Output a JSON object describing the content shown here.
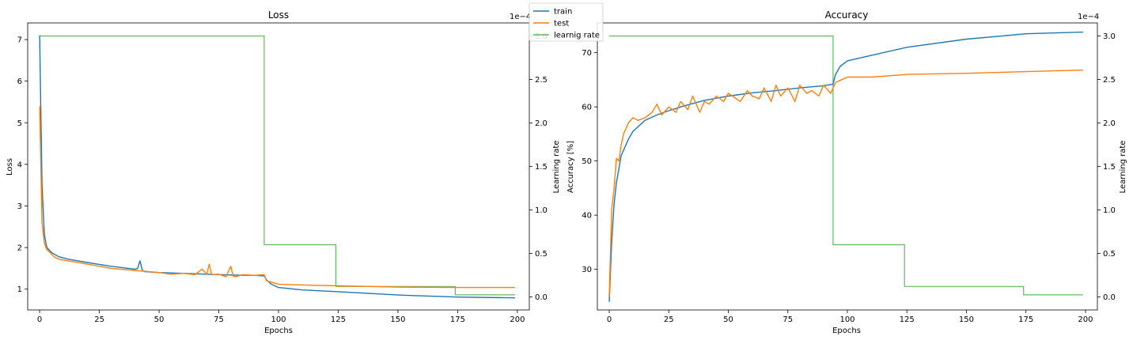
{
  "figure": {
    "legend": {
      "entries": [
        {
          "label": "train",
          "color": "#1f77b4"
        },
        {
          "label": "test",
          "color": "#ff7f0e"
        },
        {
          "label": "learnig rate",
          "color": "#2ca02c"
        }
      ]
    }
  },
  "chart_data": [
    {
      "type": "line",
      "title": "Loss",
      "xlabel": "Epochs",
      "ylabel": "Loss",
      "y2label": "Learning rate",
      "y2_offset_label": "1e−4",
      "xlim": [
        -5,
        205
      ],
      "ylim": [
        0.5,
        7.4
      ],
      "y2lim": [
        -0.15,
        3.15
      ],
      "xticks": [
        0,
        25,
        50,
        75,
        100,
        125,
        150,
        175,
        200
      ],
      "yticks": [
        1,
        2,
        3,
        4,
        5,
        6,
        7
      ],
      "y2ticks": [
        0.0,
        0.5,
        1.0,
        1.5,
        2.0,
        2.5,
        3.0
      ],
      "series": [
        {
          "name": "train",
          "color": "#1f77b4",
          "x": [
            0,
            1,
            2,
            3,
            5,
            8,
            12,
            20,
            30,
            40,
            41,
            42,
            43,
            44,
            50,
            60,
            70,
            80,
            90,
            94,
            95,
            97,
            100,
            110,
            125,
            150,
            175,
            199
          ],
          "y": [
            7.1,
            3.5,
            2.3,
            2.0,
            1.88,
            1.78,
            1.72,
            1.64,
            1.55,
            1.48,
            1.5,
            1.68,
            1.45,
            1.42,
            1.4,
            1.38,
            1.36,
            1.34,
            1.33,
            1.32,
            1.22,
            1.12,
            1.04,
            0.98,
            0.94,
            0.86,
            0.81,
            0.79
          ]
        },
        {
          "name": "test",
          "color": "#ff7f0e",
          "x": [
            0,
            1,
            2,
            3,
            4,
            6,
            8,
            12,
            20,
            30,
            40,
            50,
            55,
            60,
            65,
            68,
            70,
            71,
            72,
            75,
            78,
            80,
            81,
            82,
            85,
            90,
            94,
            95,
            100,
            110,
            125,
            150,
            175,
            199
          ],
          "y": [
            5.4,
            2.6,
            2.1,
            1.95,
            1.9,
            1.78,
            1.72,
            1.68,
            1.6,
            1.5,
            1.45,
            1.4,
            1.36,
            1.38,
            1.35,
            1.48,
            1.36,
            1.6,
            1.35,
            1.36,
            1.3,
            1.55,
            1.32,
            1.3,
            1.35,
            1.33,
            1.35,
            1.2,
            1.12,
            1.1,
            1.08,
            1.05,
            1.04,
            1.04
          ]
        },
        {
          "name": "learnig rate",
          "color": "#2ca02c",
          "x": [
            0,
            94,
            94,
            124,
            124,
            174,
            174,
            199
          ],
          "y": [
            3.0,
            3.0,
            0.6,
            0.6,
            0.12,
            0.12,
            0.024,
            0.024
          ]
        }
      ]
    },
    {
      "type": "line",
      "title": "Accuracy",
      "xlabel": "Epochs",
      "ylabel": "Accuracy [%]",
      "y2label": "Learning rate",
      "y2_offset_label": "1e−4",
      "xlim": [
        -5,
        205
      ],
      "ylim": [
        22.5,
        75.5
      ],
      "y2lim": [
        -0.15,
        3.15
      ],
      "xticks": [
        0,
        25,
        50,
        75,
        100,
        125,
        150,
        175,
        200
      ],
      "yticks": [
        30,
        40,
        50,
        60,
        70
      ],
      "y2ticks": [
        0.0,
        0.5,
        1.0,
        1.5,
        2.0,
        2.5,
        3.0
      ],
      "series": [
        {
          "name": "train",
          "color": "#1f77b4",
          "x": [
            0,
            1,
            2,
            3,
            5,
            8,
            10,
            15,
            20,
            25,
            30,
            40,
            50,
            60,
            70,
            80,
            90,
            94,
            95,
            97,
            100,
            110,
            125,
            150,
            175,
            199
          ],
          "y": [
            24,
            35,
            42,
            46,
            51,
            54,
            55.5,
            57.5,
            58.5,
            59.3,
            60,
            61.2,
            62,
            62.6,
            63,
            63.5,
            63.9,
            64.2,
            66,
            67.5,
            68.5,
            69.5,
            71,
            72.5,
            73.5,
            73.8
          ]
        },
        {
          "name": "test",
          "color": "#ff7f0e",
          "x": [
            0,
            1,
            2,
            3,
            4,
            5,
            6,
            8,
            10,
            12,
            15,
            18,
            20,
            22,
            25,
            28,
            30,
            33,
            35,
            38,
            40,
            42,
            45,
            48,
            50,
            55,
            58,
            60,
            63,
            65,
            68,
            70,
            72,
            75,
            78,
            80,
            83,
            85,
            88,
            90,
            93,
            95,
            100,
            110,
            125,
            150,
            175,
            199
          ],
          "y": [
            25,
            41,
            45,
            50.5,
            50,
            53,
            55,
            57,
            58,
            57.5,
            58,
            59,
            60.5,
            58.5,
            60,
            59,
            61,
            59.5,
            62,
            59,
            61,
            60.5,
            62,
            61,
            62.5,
            61,
            63,
            62,
            61.5,
            63.5,
            61,
            64,
            62,
            63.5,
            61,
            64,
            62.5,
            63,
            62,
            64,
            62.5,
            64.5,
            65.5,
            65.5,
            66,
            66.2,
            66.5,
            66.8
          ]
        },
        {
          "name": "learnig rate",
          "color": "#2ca02c",
          "x": [
            0,
            94,
            94,
            124,
            124,
            174,
            174,
            199
          ],
          "y": [
            3.0,
            3.0,
            0.6,
            0.6,
            0.12,
            0.12,
            0.024,
            0.024
          ]
        }
      ]
    }
  ]
}
